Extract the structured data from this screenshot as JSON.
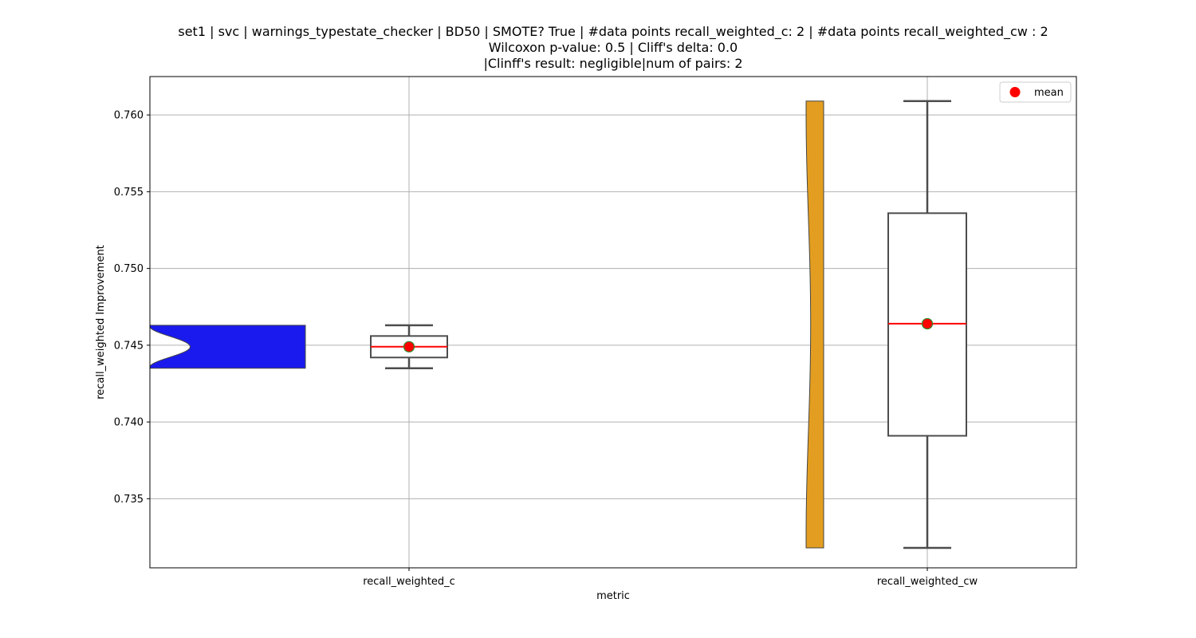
{
  "chart_data": {
    "type": "box",
    "title_lines": [
      "set1 | svc | warnings_typestate_checker | BD50 | SMOTE? True | #data points recall_weighted_c: 2 | #data points recall_weighted_cw : 2",
      "Wilcoxon p-value: 0.5 | Cliff's delta: 0.0",
      "|Clinff's result: negligible|num of pairs: 2"
    ],
    "xlabel": "metric",
    "ylabel": "recall_weighted Improvement",
    "ylim": [
      0.7305,
      0.7625
    ],
    "yticks": [
      0.735,
      0.74,
      0.745,
      0.75,
      0.755,
      0.76
    ],
    "ytick_labels": [
      "0.735",
      "0.740",
      "0.745",
      "0.750",
      "0.755",
      "0.760"
    ],
    "grid": true,
    "legend": {
      "placement": "top-right",
      "entries": [
        {
          "label": "mean",
          "color": "#ff0000"
        }
      ]
    },
    "categories": [
      "recall_weighted_c",
      "recall_weighted_cw"
    ],
    "series": [
      {
        "category": "recall_weighted_c",
        "points": [
          0.7435,
          0.7463
        ],
        "whisker_low": 0.7435,
        "q1": 0.7442,
        "median": 0.7449,
        "q3": 0.7456,
        "whisker_high": 0.7463,
        "mean": 0.7449,
        "violin_color": "#1a1aee"
      },
      {
        "category": "recall_weighted_cw",
        "points": [
          0.7318,
          0.7609
        ],
        "whisker_low": 0.7318,
        "q1": 0.7391,
        "median": 0.7464,
        "q3": 0.7536,
        "whisker_high": 0.7609,
        "mean": 0.7464,
        "violin_color": "#e39e21"
      }
    ],
    "colors": {
      "box_edge": "#4d4d4d",
      "median": "#ff0000",
      "mean_fill": "#ff0000",
      "mean_edge": "#2e8b2e",
      "grid": "#b0b0b0"
    }
  }
}
